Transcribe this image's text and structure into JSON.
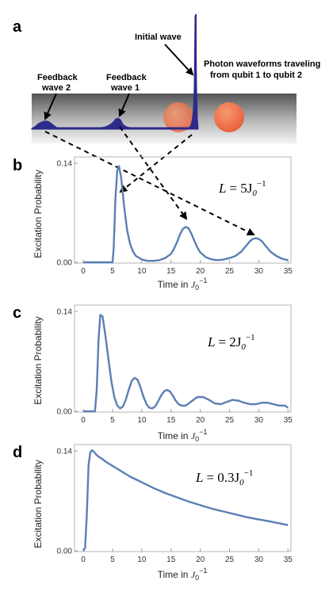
{
  "figure": {
    "panel_a": {
      "letter": "a",
      "labels": {
        "initial": "Initial wave",
        "fb1_line1": "Feedback",
        "fb1_line2": "wave 1",
        "fb2_line1": "Feedback",
        "fb2_line2": "wave 2",
        "photon_line1": "Photon waveforms traveling",
        "photon_line2": "from qubit 1 to qubit 2"
      },
      "colors": {
        "waveform": "#2e2a8c",
        "qubit": "#ee6a45",
        "waveguide_top": "#555555",
        "waveguide_bottom": "#f2f2f2"
      }
    },
    "panels": [
      {
        "letter": "b",
        "ylabel": "Excitation Probability",
        "xlabel_prefix": "Time in ",
        "xlabel_sym": "J",
        "xlabel_sub": "0",
        "xlabel_sup": "−1",
        "eq_lhs": "L",
        "eq_eq": "= 5J",
        "eq_sub": "0",
        "eq_sup": "−1"
      },
      {
        "letter": "c",
        "ylabel": "Excitation Probability",
        "xlabel_prefix": "Time in ",
        "xlabel_sym": "J",
        "xlabel_sub": "0",
        "xlabel_sup": "−1",
        "eq_lhs": "L",
        "eq_eq": "= 2J",
        "eq_sub": "0",
        "eq_sup": "−1"
      },
      {
        "letter": "d",
        "ylabel": "Excitation Probability",
        "xlabel_prefix": "Time in ",
        "xlabel_sym": "J",
        "xlabel_sub": "0",
        "xlabel_sup": "−1",
        "eq_lhs": "L",
        "eq_eq": "= 0.3J",
        "eq_sub": "0",
        "eq_sup": "−1"
      }
    ]
  },
  "chart_data": [
    {
      "type": "line",
      "panel": "b",
      "xlim": [
        -1.5,
        35.5
      ],
      "ylim": [
        0,
        0.14
      ],
      "xticks": [
        "0",
        "5",
        "10",
        "15",
        "20",
        "25",
        "30",
        "35"
      ],
      "yticks": [
        "0.00",
        "0.14"
      ],
      "ylabel": "Excitation Probability",
      "xlabel": "Time in J0^-1",
      "annotation": "L = 5J0^-1",
      "color": "#5b7fb3",
      "series": [
        {
          "x": [
            0,
            5,
            5.2,
            5.5,
            5.8,
            6.1,
            6.5,
            7.0,
            7.5,
            8.0,
            8.5,
            9.0,
            10,
            11,
            12,
            13,
            14,
            15,
            15.5,
            16,
            16.5,
            17,
            17.5,
            18,
            18.5,
            19,
            19.5,
            20,
            21,
            22,
            23,
            24,
            25,
            26,
            27,
            27.5,
            28,
            28.5,
            29,
            29.5,
            30,
            30.5,
            31,
            31.5,
            32,
            33,
            34,
            35
          ],
          "y": [
            0,
            0,
            0.02,
            0.09,
            0.13,
            0.136,
            0.118,
            0.078,
            0.045,
            0.026,
            0.015,
            0.009,
            0.004,
            0.002,
            0.002,
            0.003,
            0.006,
            0.012,
            0.019,
            0.028,
            0.039,
            0.047,
            0.05,
            0.048,
            0.04,
            0.03,
            0.021,
            0.014,
            0.007,
            0.004,
            0.003,
            0.004,
            0.006,
            0.009,
            0.015,
            0.02,
            0.025,
            0.03,
            0.033,
            0.034,
            0.033,
            0.03,
            0.025,
            0.02,
            0.015,
            0.009,
            0.005,
            0.003
          ]
        }
      ]
    },
    {
      "type": "line",
      "panel": "c",
      "xlim": [
        -1.5,
        35.5
      ],
      "ylim": [
        0,
        0.14
      ],
      "xticks": [
        "0",
        "5",
        "10",
        "15",
        "20",
        "25",
        "30",
        "35"
      ],
      "yticks": [
        "0.00",
        "0.14"
      ],
      "ylabel": "Excitation Probability",
      "xlabel": "Time in J0^-1",
      "annotation": "L = 2J0^-1",
      "color": "#5b7fb3",
      "series": [
        {
          "x": [
            0,
            2,
            2.3,
            2.6,
            2.9,
            3.3,
            3.8,
            4.3,
            4.8,
            5.3,
            5.8,
            6.3,
            6.8,
            7.3,
            7.8,
            8.3,
            8.8,
            9.3,
            9.8,
            10.3,
            10.8,
            11.3,
            11.8,
            12.3,
            12.8,
            13.3,
            13.8,
            14.3,
            14.8,
            15.3,
            15.8,
            16.3,
            16.8,
            17.5,
            18.5,
            19.5,
            20.5,
            21.5,
            22.5,
            23.5,
            24.5,
            25.5,
            26.5,
            27.5,
            28.5,
            29.5,
            30.5,
            31.5,
            32.5,
            33.5,
            34.5,
            35
          ],
          "y": [
            0,
            0,
            0.03,
            0.1,
            0.135,
            0.133,
            0.105,
            0.073,
            0.042,
            0.02,
            0.008,
            0.004,
            0.007,
            0.017,
            0.031,
            0.043,
            0.047,
            0.044,
            0.033,
            0.02,
            0.01,
            0.005,
            0.004,
            0.007,
            0.014,
            0.022,
            0.028,
            0.03,
            0.028,
            0.022,
            0.015,
            0.01,
            0.008,
            0.008,
            0.014,
            0.02,
            0.02,
            0.016,
            0.011,
            0.01,
            0.013,
            0.016,
            0.015,
            0.012,
            0.01,
            0.01,
            0.012,
            0.012,
            0.01,
            0.008,
            0.008,
            0.005
          ]
        }
      ]
    },
    {
      "type": "line",
      "panel": "d",
      "xlim": [
        -1.5,
        35.5
      ],
      "ylim": [
        0,
        0.14
      ],
      "xticks": [
        "0",
        "5",
        "10",
        "15",
        "20",
        "25",
        "30",
        "35"
      ],
      "yticks": [
        "0.00",
        "0.14"
      ],
      "ylabel": "Excitation Probability",
      "xlabel": "Time in J0^-1",
      "annotation": "L = 0.3J0^-1",
      "color": "#5b7fb3",
      "series": [
        {
          "x": [
            0,
            0.3,
            0.6,
            0.9,
            1.2,
            1.5,
            1.8,
            2.2,
            2.6,
            3,
            4,
            5,
            6,
            7,
            8,
            9,
            10,
            12,
            14,
            16,
            18,
            20,
            22,
            24,
            26,
            28,
            30,
            32,
            35
          ],
          "y": [
            0,
            0.004,
            0.05,
            0.12,
            0.138,
            0.141,
            0.139,
            0.135,
            0.132,
            0.13,
            0.124,
            0.119,
            0.114,
            0.109,
            0.104,
            0.1,
            0.096,
            0.088,
            0.081,
            0.075,
            0.069,
            0.064,
            0.059,
            0.055,
            0.051,
            0.047,
            0.044,
            0.041,
            0.036
          ]
        }
      ]
    }
  ]
}
